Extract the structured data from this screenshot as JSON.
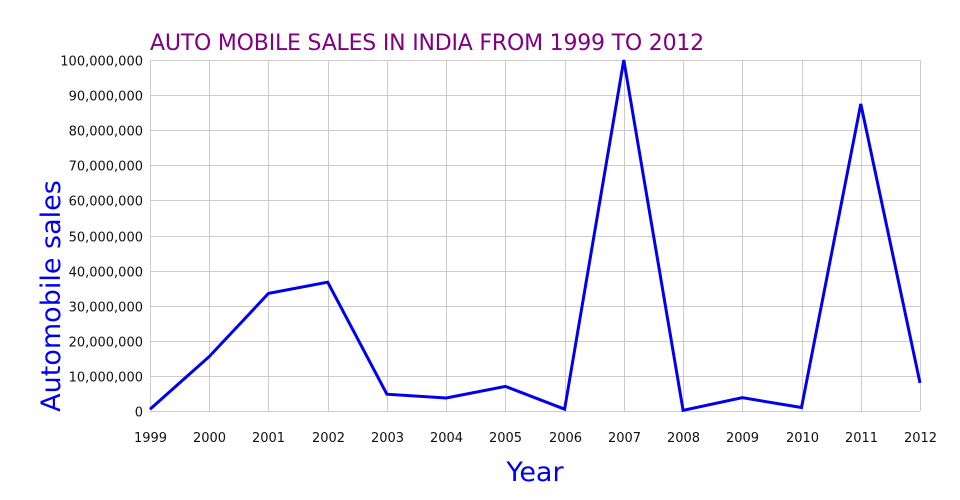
{
  "chart_data": {
    "type": "line",
    "title": "AUTO MOBILE SALES IN INDIA FROM 1999 TO 2012",
    "xlabel": "Year",
    "ylabel": "Automobile sales",
    "x": [
      "1999",
      "2000",
      "2001",
      "2002",
      "2003",
      "2004",
      "2005",
      "2006",
      "2007",
      "2008",
      "2009",
      "2010",
      "2011",
      "2012"
    ],
    "series": [
      {
        "values": [
          500000,
          15500000,
          33500000,
          36700000,
          4800000,
          3700000,
          7000000,
          500000,
          100000000,
          200000,
          3800000,
          1000000,
          87500000,
          8000000
        ]
      }
    ],
    "ylim": [
      0,
      100000000
    ],
    "yticks": [
      0,
      10000000,
      20000000,
      30000000,
      40000000,
      50000000,
      60000000,
      70000000,
      80000000,
      90000000,
      100000000
    ],
    "ytick_labels": [
      "0",
      "10,000,000",
      "20,000,000",
      "30,000,000",
      "40,000,000",
      "50,000,000",
      "60,000,000",
      "70,000,000",
      "80,000,000",
      "90,000,000",
      "100,000,000"
    ],
    "grid": true,
    "colors": {
      "title": "#800080",
      "line": "#0000ee",
      "axis_label": "#0000ee",
      "grid": "#cccccc"
    }
  }
}
